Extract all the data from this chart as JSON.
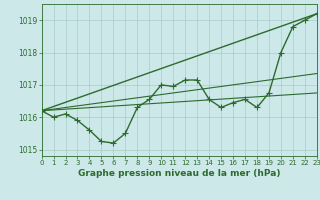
{
  "background_color": "#cce8e8",
  "grid_color": "#aacccc",
  "line_color": "#2d6b2d",
  "xlabel": "Graphe pression niveau de la mer (hPa)",
  "xlim": [
    0,
    23
  ],
  "ylim": [
    1014.8,
    1019.5
  ],
  "yticks": [
    1015,
    1016,
    1017,
    1018,
    1019
  ],
  "xticks": [
    0,
    1,
    2,
    3,
    4,
    5,
    6,
    7,
    8,
    9,
    10,
    11,
    12,
    13,
    14,
    15,
    16,
    17,
    18,
    19,
    20,
    21,
    22,
    23
  ],
  "series": [
    {
      "x": [
        0,
        1,
        2,
        3,
        4,
        5,
        6,
        7,
        8,
        9,
        10,
        11,
        12,
        13,
        14,
        15,
        16,
        17,
        18,
        19,
        20,
        21,
        22,
        23
      ],
      "y": [
        1016.2,
        1016.0,
        1016.1,
        1015.9,
        1015.6,
        1015.25,
        1015.2,
        1015.5,
        1016.3,
        1016.55,
        1017.0,
        1016.95,
        1017.15,
        1017.15,
        1016.55,
        1016.3,
        1016.45,
        1016.55,
        1016.3,
        1016.75,
        1018.0,
        1018.8,
        1019.0,
        1019.2
      ],
      "marker": "+",
      "markersize": 4,
      "linewidth": 1.0
    },
    {
      "x": [
        0,
        23
      ],
      "y": [
        1016.2,
        1019.2
      ],
      "marker": null,
      "linewidth": 1.0
    },
    {
      "x": [
        0,
        23
      ],
      "y": [
        1016.2,
        1017.35
      ],
      "marker": null,
      "linewidth": 0.8
    },
    {
      "x": [
        0,
        23
      ],
      "y": [
        1016.2,
        1016.75
      ],
      "marker": null,
      "linewidth": 0.8
    }
  ]
}
